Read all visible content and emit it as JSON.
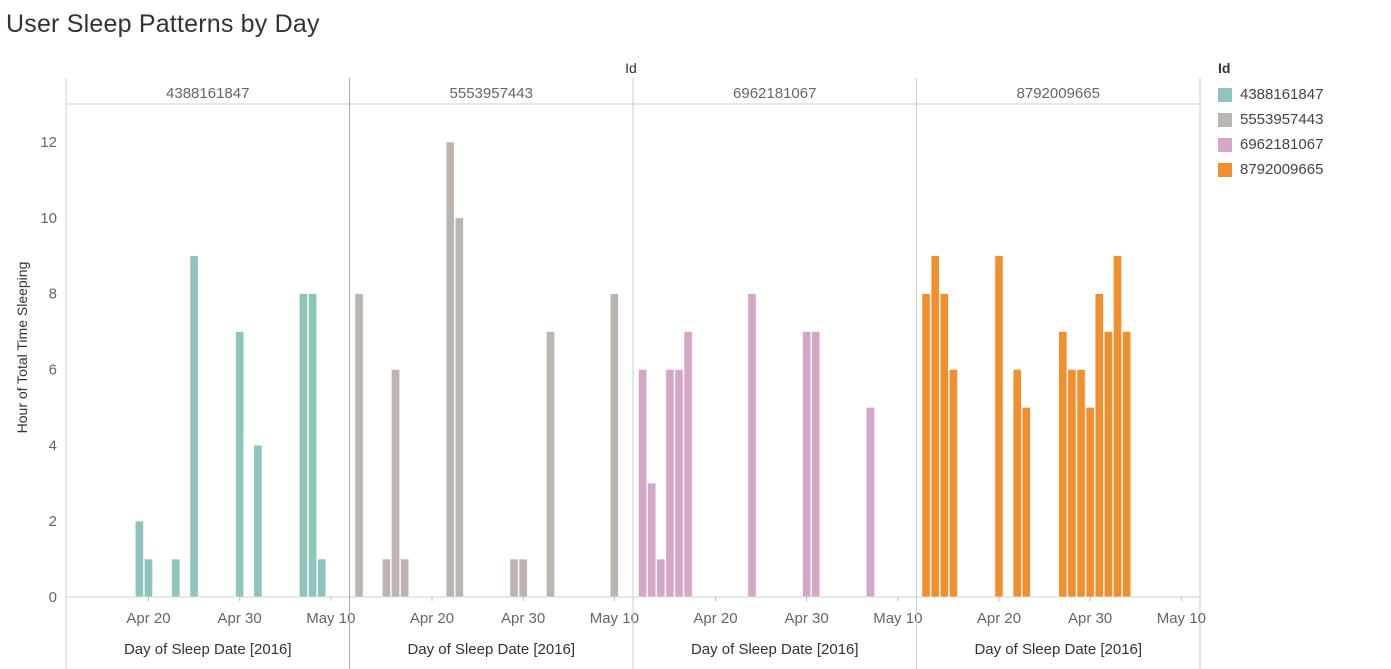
{
  "title": "User Sleep Patterns by Day",
  "header_label": "Id",
  "legend": {
    "title": "Id",
    "items": [
      {
        "label": "4388161847",
        "color": "#8ec4bc"
      },
      {
        "label": "5553957443",
        "color": "#bcb4ae"
      },
      {
        "label": "6962181067",
        "color": "#d4a6c8"
      },
      {
        "label": "8792009665",
        "color": "#f28e2b"
      }
    ]
  },
  "chart_data": {
    "type": "bar",
    "title": "User Sleep Patterns by Day",
    "ylabel": "Hour of Total Time Sleeping",
    "xlabel": "Day of Sleep Date [2016]",
    "ylim": [
      0,
      13
    ],
    "yticks": [
      0,
      2,
      4,
      6,
      8,
      10,
      12
    ],
    "xrange": [
      "2016-04-12",
      "2016-05-12"
    ],
    "xticks": [
      {
        "date": "2016-04-20",
        "label": "Apr 20"
      },
      {
        "date": "2016-04-30",
        "label": "Apr 30"
      },
      {
        "date": "2016-05-10",
        "label": "May 10"
      }
    ],
    "grid": false,
    "legend_position": "right",
    "panels": [
      {
        "id": "4388161847",
        "color": "#8ec4bc",
        "points": [
          {
            "date": "2016-04-19",
            "value": 2
          },
          {
            "date": "2016-04-20",
            "value": 1
          },
          {
            "date": "2016-04-23",
            "value": 1
          },
          {
            "date": "2016-04-25",
            "value": 9
          },
          {
            "date": "2016-04-30",
            "value": 7
          },
          {
            "date": "2016-05-02",
            "value": 4
          },
          {
            "date": "2016-05-07",
            "value": 8
          },
          {
            "date": "2016-05-08",
            "value": 8
          },
          {
            "date": "2016-05-09",
            "value": 1
          }
        ]
      },
      {
        "id": "5553957443",
        "color": "#bcb4ae",
        "points": [
          {
            "date": "2016-04-12",
            "value": 8
          },
          {
            "date": "2016-04-15",
            "value": 1
          },
          {
            "date": "2016-04-16",
            "value": 6
          },
          {
            "date": "2016-04-17",
            "value": 1
          },
          {
            "date": "2016-04-22",
            "value": 12
          },
          {
            "date": "2016-04-23",
            "value": 10
          },
          {
            "date": "2016-04-29",
            "value": 1
          },
          {
            "date": "2016-04-30",
            "value": 1
          },
          {
            "date": "2016-05-03",
            "value": 7
          },
          {
            "date": "2016-05-10",
            "value": 8
          }
        ]
      },
      {
        "id": "6962181067",
        "color": "#d4a6c8",
        "points": [
          {
            "date": "2016-04-12",
            "value": 6
          },
          {
            "date": "2016-04-13",
            "value": 3
          },
          {
            "date": "2016-04-14",
            "value": 1
          },
          {
            "date": "2016-04-15",
            "value": 6
          },
          {
            "date": "2016-04-16",
            "value": 6
          },
          {
            "date": "2016-04-17",
            "value": 7
          },
          {
            "date": "2016-04-24",
            "value": 8
          },
          {
            "date": "2016-04-30",
            "value": 7
          },
          {
            "date": "2016-05-01",
            "value": 7
          },
          {
            "date": "2016-05-07",
            "value": 5
          }
        ]
      },
      {
        "id": "8792009665",
        "color": "#f28e2b",
        "points": [
          {
            "date": "2016-04-12",
            "value": 8
          },
          {
            "date": "2016-04-13",
            "value": 9
          },
          {
            "date": "2016-04-14",
            "value": 8
          },
          {
            "date": "2016-04-15",
            "value": 6
          },
          {
            "date": "2016-04-20",
            "value": 9
          },
          {
            "date": "2016-04-22",
            "value": 6
          },
          {
            "date": "2016-04-23",
            "value": 5
          },
          {
            "date": "2016-04-27",
            "value": 7
          },
          {
            "date": "2016-04-28",
            "value": 6
          },
          {
            "date": "2016-04-29",
            "value": 6
          },
          {
            "date": "2016-04-30",
            "value": 5
          },
          {
            "date": "2016-05-01",
            "value": 8
          },
          {
            "date": "2016-05-02",
            "value": 7
          },
          {
            "date": "2016-05-03",
            "value": 9
          },
          {
            "date": "2016-05-04",
            "value": 7
          }
        ]
      }
    ]
  }
}
